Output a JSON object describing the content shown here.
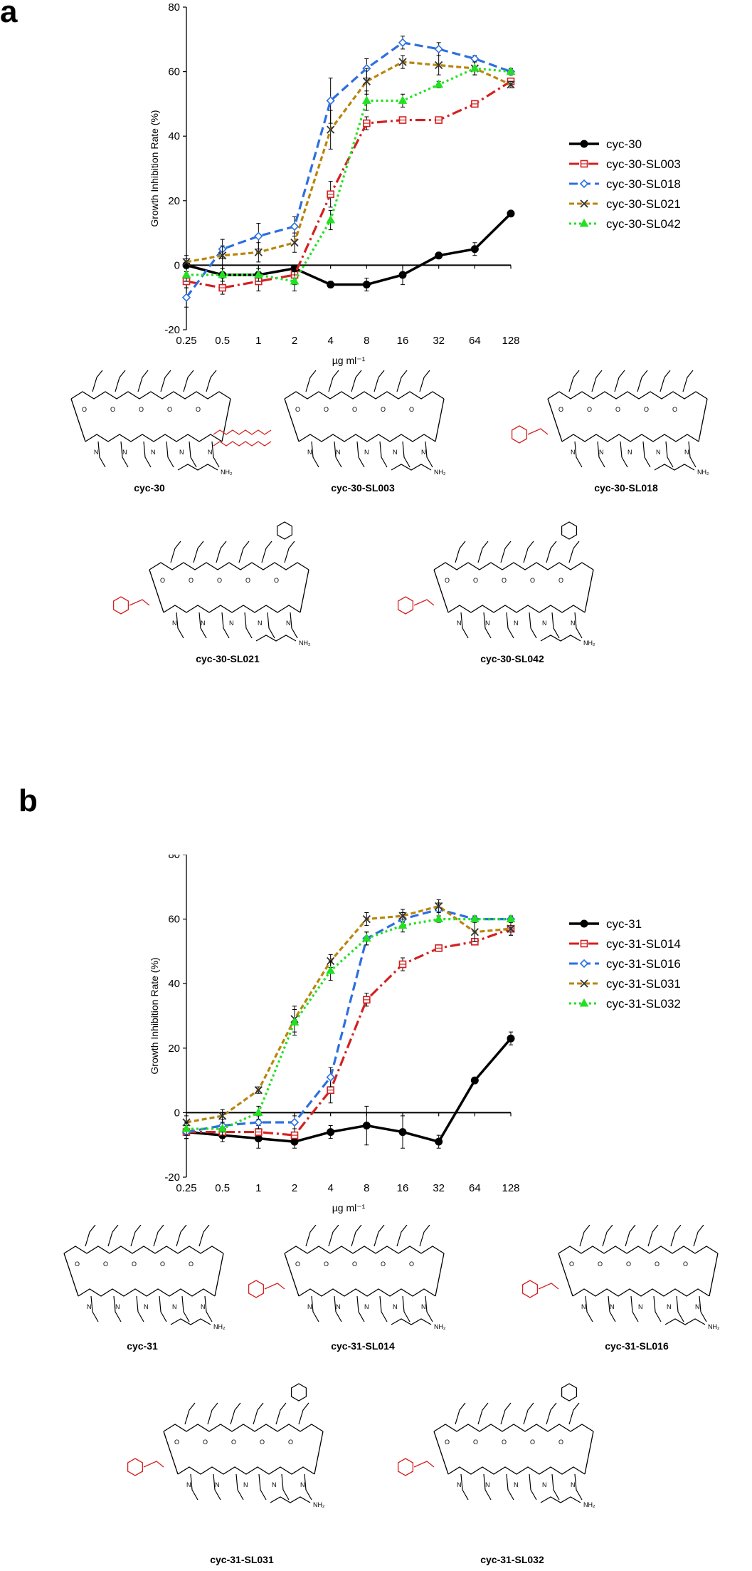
{
  "panels": [
    {
      "letter": "a",
      "molecule_labels": [
        "cyc-30",
        "cyc-30-SL003",
        "cyc-30-SL018",
        "cyc-30-SL021",
        "cyc-30-SL042"
      ],
      "legend_order": [
        0,
        1,
        2,
        3,
        4
      ]
    },
    {
      "letter": "b",
      "molecule_labels": [
        "cyc-31",
        "cyc-31-SL014",
        "cyc-31-SL016",
        "cyc-31-SL031",
        "cyc-31-SL032"
      ],
      "legend_order": [
        0,
        1,
        2,
        3,
        4
      ]
    }
  ],
  "chart_data": [
    {
      "type": "line",
      "panel": "a",
      "title": "",
      "xlabel": "µg ml⁻¹",
      "ylabel": "Growth Inhibition Rate (%)",
      "x_scale": "log2",
      "x": [
        "0.25",
        "0.5",
        "1",
        "2",
        "4",
        "8",
        "16",
        "32",
        "64",
        "128"
      ],
      "yticks": [
        -20,
        0,
        20,
        40,
        60,
        80
      ],
      "ylim": [
        -20,
        80
      ],
      "legend_position": "right",
      "series": [
        {
          "name": "cyc-30",
          "color": "#000000",
          "dash": "solid",
          "marker": "circle-filled",
          "values": [
            0,
            -3,
            -3,
            -1,
            -6,
            -6,
            -3,
            3,
            5,
            16
          ],
          "errors": [
            2,
            2,
            2,
            1,
            1,
            2,
            3,
            1,
            2,
            1
          ]
        },
        {
          "name": "cyc-30-SL003",
          "color": "#d42020",
          "dash": "dashdot",
          "marker": "square-open",
          "values": [
            -5,
            -7,
            -5,
            -3,
            22,
            44,
            45,
            45,
            50,
            57
          ],
          "errors": [
            2,
            2,
            3,
            3,
            4,
            2,
            1,
            1,
            1,
            1
          ]
        },
        {
          "name": "cyc-30-SL018",
          "color": "#2d6fe0",
          "dash": "dashed",
          "marker": "diamond-open",
          "values": [
            -10,
            5,
            9,
            12,
            51,
            61,
            69,
            67,
            64,
            60
          ],
          "errors": [
            3,
            3,
            4,
            3,
            7,
            3,
            2,
            2,
            1,
            1
          ]
        },
        {
          "name": "cyc-30-SL021",
          "color": "#b8860b",
          "dash": "dashed-short",
          "marker": "x",
          "values": [
            1,
            3,
            4,
            7,
            42,
            57,
            63,
            62,
            61,
            56
          ],
          "errors": [
            2,
            3,
            3,
            3,
            6,
            4,
            2,
            3,
            2,
            1
          ]
        },
        {
          "name": "cyc-30-SL042",
          "color": "#22e022",
          "dash": "dotted",
          "marker": "triangle-filled",
          "values": [
            -3,
            -3,
            -3,
            -5,
            14,
            51,
            51,
            56,
            61,
            60
          ],
          "errors": [
            2,
            2,
            2,
            3,
            3,
            3,
            2,
            1,
            2,
            1
          ]
        }
      ]
    },
    {
      "type": "line",
      "panel": "b",
      "title": "",
      "xlabel": "µg ml⁻¹",
      "ylabel": "Growth Inhibition Rate (%)",
      "x_scale": "log2",
      "x": [
        "0.25",
        "0.5",
        "1",
        "2",
        "4",
        "8",
        "16",
        "32",
        "64",
        "128"
      ],
      "yticks": [
        -20,
        0,
        20,
        40,
        60,
        80
      ],
      "ylim": [
        -20,
        80
      ],
      "legend_position": "right",
      "series": [
        {
          "name": "cyc-31",
          "color": "#000000",
          "dash": "solid",
          "marker": "circle-filled",
          "values": [
            -6,
            -7,
            -8,
            -9,
            -6,
            -4,
            -6,
            -9,
            10,
            23
          ],
          "errors": [
            2,
            2,
            3,
            2,
            2,
            6,
            5,
            2,
            1,
            2
          ]
        },
        {
          "name": "cyc-31-SL014",
          "color": "#d42020",
          "dash": "dashdot",
          "marker": "square-open",
          "values": [
            -6,
            -6,
            -6,
            -7,
            7,
            35,
            46,
            51,
            53,
            57
          ],
          "errors": [
            2,
            2,
            2,
            2,
            4,
            2,
            2,
            1,
            1,
            2
          ]
        },
        {
          "name": "cyc-31-SL016",
          "color": "#2d6fe0",
          "dash": "dashed",
          "marker": "diamond-open",
          "values": [
            -6,
            -4,
            -3,
            -3,
            11,
            54,
            60,
            63,
            60,
            60
          ],
          "errors": [
            2,
            2,
            2,
            2,
            3,
            2,
            2,
            2,
            1,
            1
          ]
        },
        {
          "name": "cyc-31-SL031",
          "color": "#b8860b",
          "dash": "dashed-short",
          "marker": "x",
          "values": [
            -3,
            -1,
            7,
            29,
            47,
            60,
            61,
            64,
            56,
            57
          ],
          "errors": [
            2,
            2,
            1,
            4,
            2,
            2,
            2,
            2,
            3,
            2
          ]
        },
        {
          "name": "cyc-31-SL032",
          "color": "#22e022",
          "dash": "dotted",
          "marker": "triangle-filled",
          "values": [
            -5,
            -5,
            0,
            28,
            44,
            54,
            58,
            60,
            60,
            60
          ],
          "errors": [
            2,
            2,
            2,
            4,
            3,
            2,
            2,
            1,
            1,
            1
          ]
        }
      ]
    }
  ]
}
